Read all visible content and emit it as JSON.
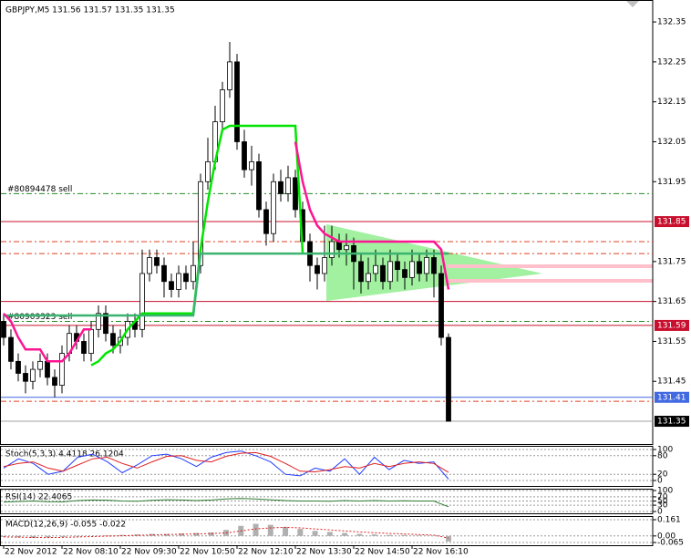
{
  "chart_data": [
    {
      "type": "candlestick",
      "title": "GBPJPY,M5  131.56 131.57 131.35 131.35",
      "open": [
        131.6,
        131.56,
        131.5,
        131.47,
        131.45,
        131.48,
        131.5,
        131.46,
        131.44,
        131.52,
        131.57,
        131.55,
        131.52,
        131.58,
        131.62,
        131.57,
        131.54,
        131.56,
        131.6,
        131.58,
        131.72,
        131.76,
        131.74,
        131.7,
        131.68,
        131.72,
        131.7,
        131.74,
        131.95,
        132.0,
        132.1,
        132.18,
        132.25,
        132.05,
        131.98,
        132.0,
        131.88,
        131.82,
        131.95,
        131.92,
        131.96,
        131.88,
        131.8,
        131.74,
        131.72,
        131.76,
        131.8,
        131.78,
        131.79,
        131.75,
        131.7,
        131.72,
        131.74,
        131.7,
        131.75,
        131.73,
        131.71,
        131.75,
        131.72,
        131.76,
        131.72,
        131.56
      ],
      "high": [
        131.62,
        131.58,
        131.52,
        131.49,
        131.5,
        131.52,
        131.52,
        131.48,
        131.54,
        131.59,
        131.59,
        131.57,
        131.6,
        131.64,
        131.64,
        131.59,
        131.58,
        131.62,
        131.62,
        131.78,
        131.78,
        131.78,
        131.76,
        131.72,
        131.74,
        131.74,
        131.8,
        131.97,
        132.06,
        132.14,
        132.2,
        132.3,
        132.27,
        132.08,
        132.04,
        132.02,
        131.9,
        131.97,
        131.98,
        131.99,
        131.98,
        131.9,
        131.82,
        131.76,
        131.84,
        131.84,
        131.82,
        131.82,
        131.81,
        131.77,
        131.76,
        131.78,
        131.76,
        131.78,
        131.77,
        131.75,
        131.78,
        131.77,
        131.78,
        131.78,
        131.74,
        131.57
      ],
      "low": [
        131.54,
        131.48,
        131.45,
        131.42,
        131.43,
        131.46,
        131.44,
        131.41,
        131.42,
        131.5,
        131.53,
        131.5,
        131.5,
        131.56,
        131.55,
        131.52,
        131.52,
        131.54,
        131.56,
        131.56,
        131.7,
        131.72,
        131.66,
        131.66,
        131.66,
        131.68,
        131.68,
        131.72,
        131.93,
        131.98,
        132.08,
        132.16,
        132.03,
        131.96,
        131.94,
        131.86,
        131.79,
        131.8,
        131.9,
        131.9,
        131.86,
        131.78,
        131.7,
        131.68,
        131.7,
        131.74,
        131.76,
        131.74,
        131.68,
        131.67,
        131.68,
        131.7,
        131.68,
        131.68,
        131.7,
        131.68,
        131.69,
        131.7,
        131.7,
        131.66,
        131.54,
        131.35
      ],
      "close": [
        131.56,
        131.5,
        131.47,
        131.45,
        131.48,
        131.5,
        131.46,
        131.44,
        131.52,
        131.57,
        131.55,
        131.52,
        131.58,
        131.62,
        131.57,
        131.54,
        131.56,
        131.6,
        131.58,
        131.72,
        131.76,
        131.74,
        131.7,
        131.68,
        131.72,
        131.7,
        131.74,
        131.95,
        132.0,
        132.1,
        132.18,
        132.25,
        132.05,
        131.98,
        132.0,
        131.88,
        131.82,
        131.95,
        131.92,
        131.96,
        131.88,
        131.8,
        131.74,
        131.72,
        131.76,
        131.8,
        131.78,
        131.79,
        131.75,
        131.7,
        131.72,
        131.74,
        131.7,
        131.75,
        131.73,
        131.71,
        131.75,
        131.72,
        131.76,
        131.72,
        131.56,
        131.35
      ],
      "series": [
        {
          "color": "#00e600",
          "values": [
            null,
            null,
            null,
            null,
            null,
            null,
            null,
            null,
            null,
            null,
            null,
            null,
            131.49,
            131.5,
            131.52,
            131.53,
            131.55,
            131.58,
            131.6,
            131.62,
            131.62,
            131.62,
            131.62,
            131.62,
            131.62,
            131.62,
            131.62,
            131.78,
            131.9,
            132.0,
            132.08,
            132.09,
            132.09,
            132.09,
            132.09,
            132.09,
            132.09,
            132.09,
            132.09,
            132.09,
            132.09,
            131.77,
            null,
            null,
            null,
            null,
            null,
            null,
            null,
            null,
            null,
            null,
            null,
            null,
            null,
            null,
            null,
            null,
            null,
            null,
            null,
            null
          ]
        },
        {
          "color": "#3cb371",
          "values": [
            131.615,
            131.615,
            131.615,
            131.615,
            131.615,
            131.615,
            131.615,
            131.615,
            131.615,
            131.615,
            131.615,
            131.615,
            131.615,
            131.615,
            131.615,
            131.615,
            131.615,
            131.615,
            131.615,
            131.615,
            131.615,
            131.615,
            131.615,
            131.615,
            131.615,
            131.615,
            131.615,
            131.77,
            131.77,
            131.77,
            131.77,
            131.77,
            131.77,
            131.77,
            131.77,
            131.77,
            131.77,
            131.77,
            131.77,
            131.77,
            131.77,
            131.77,
            131.77,
            131.77,
            131.77,
            131.77,
            131.77,
            131.77,
            131.77,
            131.77,
            131.77,
            131.77,
            131.77,
            131.77,
            131.77,
            131.77,
            131.77,
            131.77,
            131.77,
            131.77,
            131.77,
            131.77
          ]
        },
        {
          "color": "#ff1493",
          "values": [
            131.62,
            131.6,
            131.56,
            131.53,
            131.53,
            131.53,
            131.5,
            131.5,
            131.5,
            131.52,
            131.55,
            131.58,
            131.58,
            null,
            null,
            null,
            null,
            null,
            null,
            null,
            null,
            null,
            null,
            null,
            null,
            null,
            null,
            null,
            null,
            null,
            null,
            null,
            null,
            null,
            null,
            null,
            null,
            null,
            null,
            null,
            132.05,
            131.95,
            131.88,
            131.84,
            131.82,
            131.81,
            131.8,
            131.8,
            131.8,
            131.8,
            131.8,
            131.8,
            131.8,
            131.8,
            131.8,
            131.8,
            131.8,
            131.8,
            131.8,
            131.8,
            131.78,
            131.68
          ]
        }
      ],
      "levels": [
        {
          "value": 131.92,
          "color": "#228b22",
          "style": "dashdot",
          "label": "#80894478 sell"
        },
        {
          "value": 131.85,
          "color": "#c8102e",
          "style": "solid"
        },
        {
          "value": 131.8,
          "color": "#e04020",
          "style": "dashdot"
        },
        {
          "value": 131.77,
          "color": "#e04020",
          "style": "dashdot"
        },
        {
          "value": 131.65,
          "color": "#c8102e",
          "style": "solid"
        },
        {
          "value": 131.6,
          "color": "#228b22",
          "style": "dashdot",
          "label": "#80909323 sell"
        },
        {
          "value": 131.59,
          "color": "#c8102e",
          "style": "solid"
        },
        {
          "value": 131.41,
          "color": "#4169e1",
          "style": "solid"
        },
        {
          "value": 131.4,
          "color": "#e04020",
          "style": "dashdot"
        },
        {
          "value": 131.35,
          "color": "#a0a0a0",
          "style": "solid"
        }
      ],
      "price_labels": [
        {
          "value": 131.85,
          "color": "#c8102e"
        },
        {
          "value": 131.59,
          "color": "#c8102e"
        },
        {
          "value": 131.41,
          "color": "#4169e1"
        },
        {
          "value": 131.35,
          "color": "#000000"
        }
      ],
      "ylim": [
        131.293,
        132.405
      ],
      "yticks": [
        132.35,
        132.25,
        132.15,
        132.05,
        131.95,
        131.75,
        131.65,
        131.55,
        131.45
      ],
      "xticks": [
        {
          "value": 0,
          "label": "22 Nov 2012"
        },
        {
          "value": 8,
          "label": "22 Nov 08:10"
        },
        {
          "value": 16,
          "label": "22 Nov 09:30"
        },
        {
          "value": 24,
          "label": "22 Nov 10:50"
        },
        {
          "value": 32,
          "label": "22 Nov 12:10"
        },
        {
          "value": 40,
          "label": "22 Nov 13:30"
        },
        {
          "value": 48,
          "label": "22 Nov 14:50"
        },
        {
          "value": 56,
          "label": "22 Nov 16:10"
        }
      ]
    },
    {
      "type": "line",
      "title": "Stoch(5,3,3) 4.4118 26.1204",
      "series": [
        {
          "color": "#1e3cff",
          "values": [
            40,
            70,
            55,
            20,
            30,
            75,
            85,
            60,
            25,
            50,
            80,
            85,
            70,
            45,
            75,
            90,
            95,
            80,
            60,
            20,
            15,
            40,
            30,
            70,
            20,
            75,
            35,
            65,
            55,
            60,
            4.4118
          ]
        },
        {
          "color": "#e02020",
          "values": [
            45,
            55,
            60,
            40,
            30,
            50,
            70,
            75,
            55,
            40,
            60,
            78,
            80,
            65,
            60,
            78,
            88,
            90,
            78,
            55,
            30,
            28,
            35,
            45,
            40,
            55,
            45,
            55,
            60,
            55,
            26.1204
          ]
        }
      ],
      "ylim": [
        0,
        100
      ],
      "yticks": [
        100,
        80,
        20,
        0
      ]
    },
    {
      "type": "line",
      "title": "RSI(14) 22.4065",
      "series": [
        {
          "color": "#2e7d32",
          "values": [
            45,
            48,
            50,
            47,
            46,
            52,
            55,
            54,
            50,
            49,
            53,
            56,
            55,
            52,
            55,
            60,
            62,
            60,
            56,
            52,
            50,
            50,
            49,
            52,
            50,
            52,
            50,
            51,
            50,
            50,
            22.4065
          ]
        }
      ],
      "ylim": [
        0,
        100
      ],
      "yticks": [
        100,
        70,
        50,
        30,
        0
      ]
    },
    {
      "type": "bar",
      "title": "MACD(12,26,9) -0.055 -0.022",
      "color": "#b0b0b0",
      "values": [
        -0.01,
        -0.015,
        -0.02,
        -0.015,
        -0.01,
        -0.005,
        0,
        0.005,
        0.01,
        0.015,
        0.02,
        0.02,
        0.025,
        0.03,
        0.035,
        0.06,
        0.1,
        0.12,
        0.11,
        0.09,
        0.07,
        0.05,
        0.04,
        0.03,
        0.02,
        0.015,
        0.01,
        0.01,
        0.005,
        0,
        -0.055
      ],
      "series": [
        {
          "color": "#e02020",
          "values": [
            -0.01,
            -0.012,
            -0.015,
            -0.016,
            -0.014,
            -0.01,
            -0.006,
            -0.002,
            0.002,
            0.006,
            0.01,
            0.014,
            0.017,
            0.02,
            0.024,
            0.03,
            0.05,
            0.07,
            0.08,
            0.085,
            0.08,
            0.07,
            0.06,
            0.05,
            0.04,
            0.032,
            0.025,
            0.02,
            0.014,
            0.008,
            -0.022
          ]
        }
      ],
      "ylim": [
        -0.065,
        0.161
      ],
      "yticks": [
        0.161,
        {
          "value": 0,
          "label": "0.00"
        },
        -0.065
      ]
    }
  ]
}
